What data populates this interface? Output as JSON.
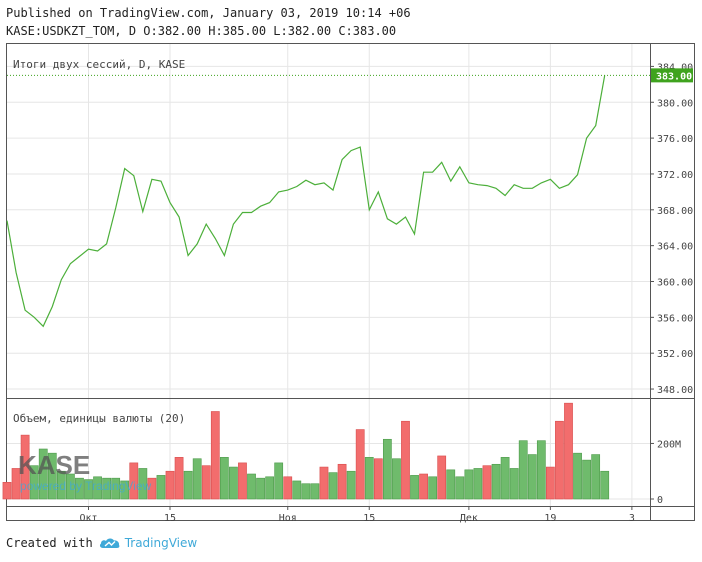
{
  "header": {
    "published": "Published on TradingView.com, January 03, 2019 10:14 +06",
    "ohlc": "KASE:USDKZT_TOM, D O:382.00 H:385.00 L:382.00 C:383.00"
  },
  "footer": {
    "created_with": "Created with",
    "brand": "TradingView"
  },
  "watermark": {
    "logo": "KASE",
    "powered": "powered by TradingView"
  },
  "colors": {
    "line": "#4caf3a",
    "vol_up": "#6fbb6c",
    "vol_down": "#f26d6d",
    "last_price_bg": "#3fa31e",
    "grid": "#e6e6e6",
    "axis": "#555555"
  },
  "chart_data": {
    "type": "line",
    "title": "Итоги двух сессий, D, KASE",
    "volume_title": "Объем, единицы валюты (20)",
    "last_price_label": "383.00",
    "ylim": [
      347,
      386.5
    ],
    "y_ticks": [
      {
        "value": 384,
        "label": "384.00"
      },
      {
        "value": 380,
        "label": "380.00"
      },
      {
        "value": 376,
        "label": "376.00"
      },
      {
        "value": 372,
        "label": "372.00"
      },
      {
        "value": 368,
        "label": "368.00"
      },
      {
        "value": 364,
        "label": "364.00"
      },
      {
        "value": 360,
        "label": "360.00"
      },
      {
        "value": 356,
        "label": "356.00"
      },
      {
        "value": 352,
        "label": "352.00"
      },
      {
        "value": 348,
        "label": "348.00"
      }
    ],
    "volume_ylim": [
      0,
      360
    ],
    "volume_ticks": [
      {
        "value": 200,
        "label": "200M"
      },
      {
        "value": 0,
        "label": "0"
      }
    ],
    "x_ticks": [
      {
        "index": 9,
        "label": "Окт"
      },
      {
        "index": 18,
        "label": "15"
      },
      {
        "index": 31,
        "label": "Ноя"
      },
      {
        "index": 40,
        "label": "15"
      },
      {
        "index": 51,
        "label": "Дек"
      },
      {
        "index": 60,
        "label": "19"
      },
      {
        "index": 69,
        "label": "3"
      }
    ],
    "x_range": [
      0,
      71
    ],
    "close": [
      366.8,
      361.0,
      356.8,
      356.0,
      355.0,
      357.2,
      360.2,
      362.0,
      362.8,
      363.6,
      363.4,
      364.2,
      368.2,
      372.6,
      371.8,
      367.8,
      371.4,
      371.2,
      368.8,
      367.2,
      362.9,
      364.2,
      366.4,
      364.8,
      362.9,
      366.4,
      367.7,
      367.7,
      368.4,
      368.8,
      370.0,
      370.2,
      370.6,
      371.3,
      370.8,
      371.0,
      370.2,
      373.6,
      374.6,
      375.0,
      368.0,
      370.0,
      367.0,
      366.4,
      367.2,
      365.3,
      372.2,
      372.2,
      373.3,
      371.2,
      372.8,
      371.0,
      370.8,
      370.7,
      370.4,
      369.6,
      370.8,
      370.4,
      370.4,
      371.0,
      371.4,
      370.4,
      370.8,
      371.9,
      376.0,
      377.4,
      383.0
    ],
    "volume": [
      {
        "v": 60,
        "up": false
      },
      {
        "v": 110,
        "up": false
      },
      {
        "v": 230,
        "up": false
      },
      {
        "v": 120,
        "up": true
      },
      {
        "v": 180,
        "up": true
      },
      {
        "v": 165,
        "up": true
      },
      {
        "v": 100,
        "up": true
      },
      {
        "v": 90,
        "up": true
      },
      {
        "v": 75,
        "up": true
      },
      {
        "v": 70,
        "up": true
      },
      {
        "v": 80,
        "up": true
      },
      {
        "v": 75,
        "up": true
      },
      {
        "v": 75,
        "up": true
      },
      {
        "v": 65,
        "up": true
      },
      {
        "v": 130,
        "up": false
      },
      {
        "v": 110,
        "up": true
      },
      {
        "v": 75,
        "up": false
      },
      {
        "v": 85,
        "up": true
      },
      {
        "v": 100,
        "up": false
      },
      {
        "v": 150,
        "up": false
      },
      {
        "v": 100,
        "up": true
      },
      {
        "v": 145,
        "up": true
      },
      {
        "v": 120,
        "up": false
      },
      {
        "v": 315,
        "up": false
      },
      {
        "v": 150,
        "up": true
      },
      {
        "v": 115,
        "up": true
      },
      {
        "v": 130,
        "up": false
      },
      {
        "v": 90,
        "up": true
      },
      {
        "v": 75,
        "up": true
      },
      {
        "v": 80,
        "up": true
      },
      {
        "v": 130,
        "up": true
      },
      {
        "v": 80,
        "up": false
      },
      {
        "v": 65,
        "up": true
      },
      {
        "v": 55,
        "up": true
      },
      {
        "v": 55,
        "up": true
      },
      {
        "v": 115,
        "up": false
      },
      {
        "v": 95,
        "up": true
      },
      {
        "v": 125,
        "up": false
      },
      {
        "v": 100,
        "up": true
      },
      {
        "v": 250,
        "up": false
      },
      {
        "v": 150,
        "up": true
      },
      {
        "v": 145,
        "up": false
      },
      {
        "v": 215,
        "up": true
      },
      {
        "v": 145,
        "up": true
      },
      {
        "v": 280,
        "up": false
      },
      {
        "v": 85,
        "up": true
      },
      {
        "v": 90,
        "up": false
      },
      {
        "v": 80,
        "up": true
      },
      {
        "v": 155,
        "up": false
      },
      {
        "v": 105,
        "up": true
      },
      {
        "v": 80,
        "up": true
      },
      {
        "v": 105,
        "up": true
      },
      {
        "v": 110,
        "up": true
      },
      {
        "v": 120,
        "up": false
      },
      {
        "v": 125,
        "up": true
      },
      {
        "v": 150,
        "up": true
      },
      {
        "v": 110,
        "up": true
      },
      {
        "v": 210,
        "up": true
      },
      {
        "v": 160,
        "up": true
      },
      {
        "v": 210,
        "up": true
      },
      {
        "v": 115,
        "up": false
      },
      {
        "v": 280,
        "up": false
      },
      {
        "v": 345,
        "up": false
      },
      {
        "v": 165,
        "up": true
      },
      {
        "v": 140,
        "up": true
      },
      {
        "v": 160,
        "up": true
      },
      {
        "v": 100,
        "up": true
      }
    ]
  }
}
